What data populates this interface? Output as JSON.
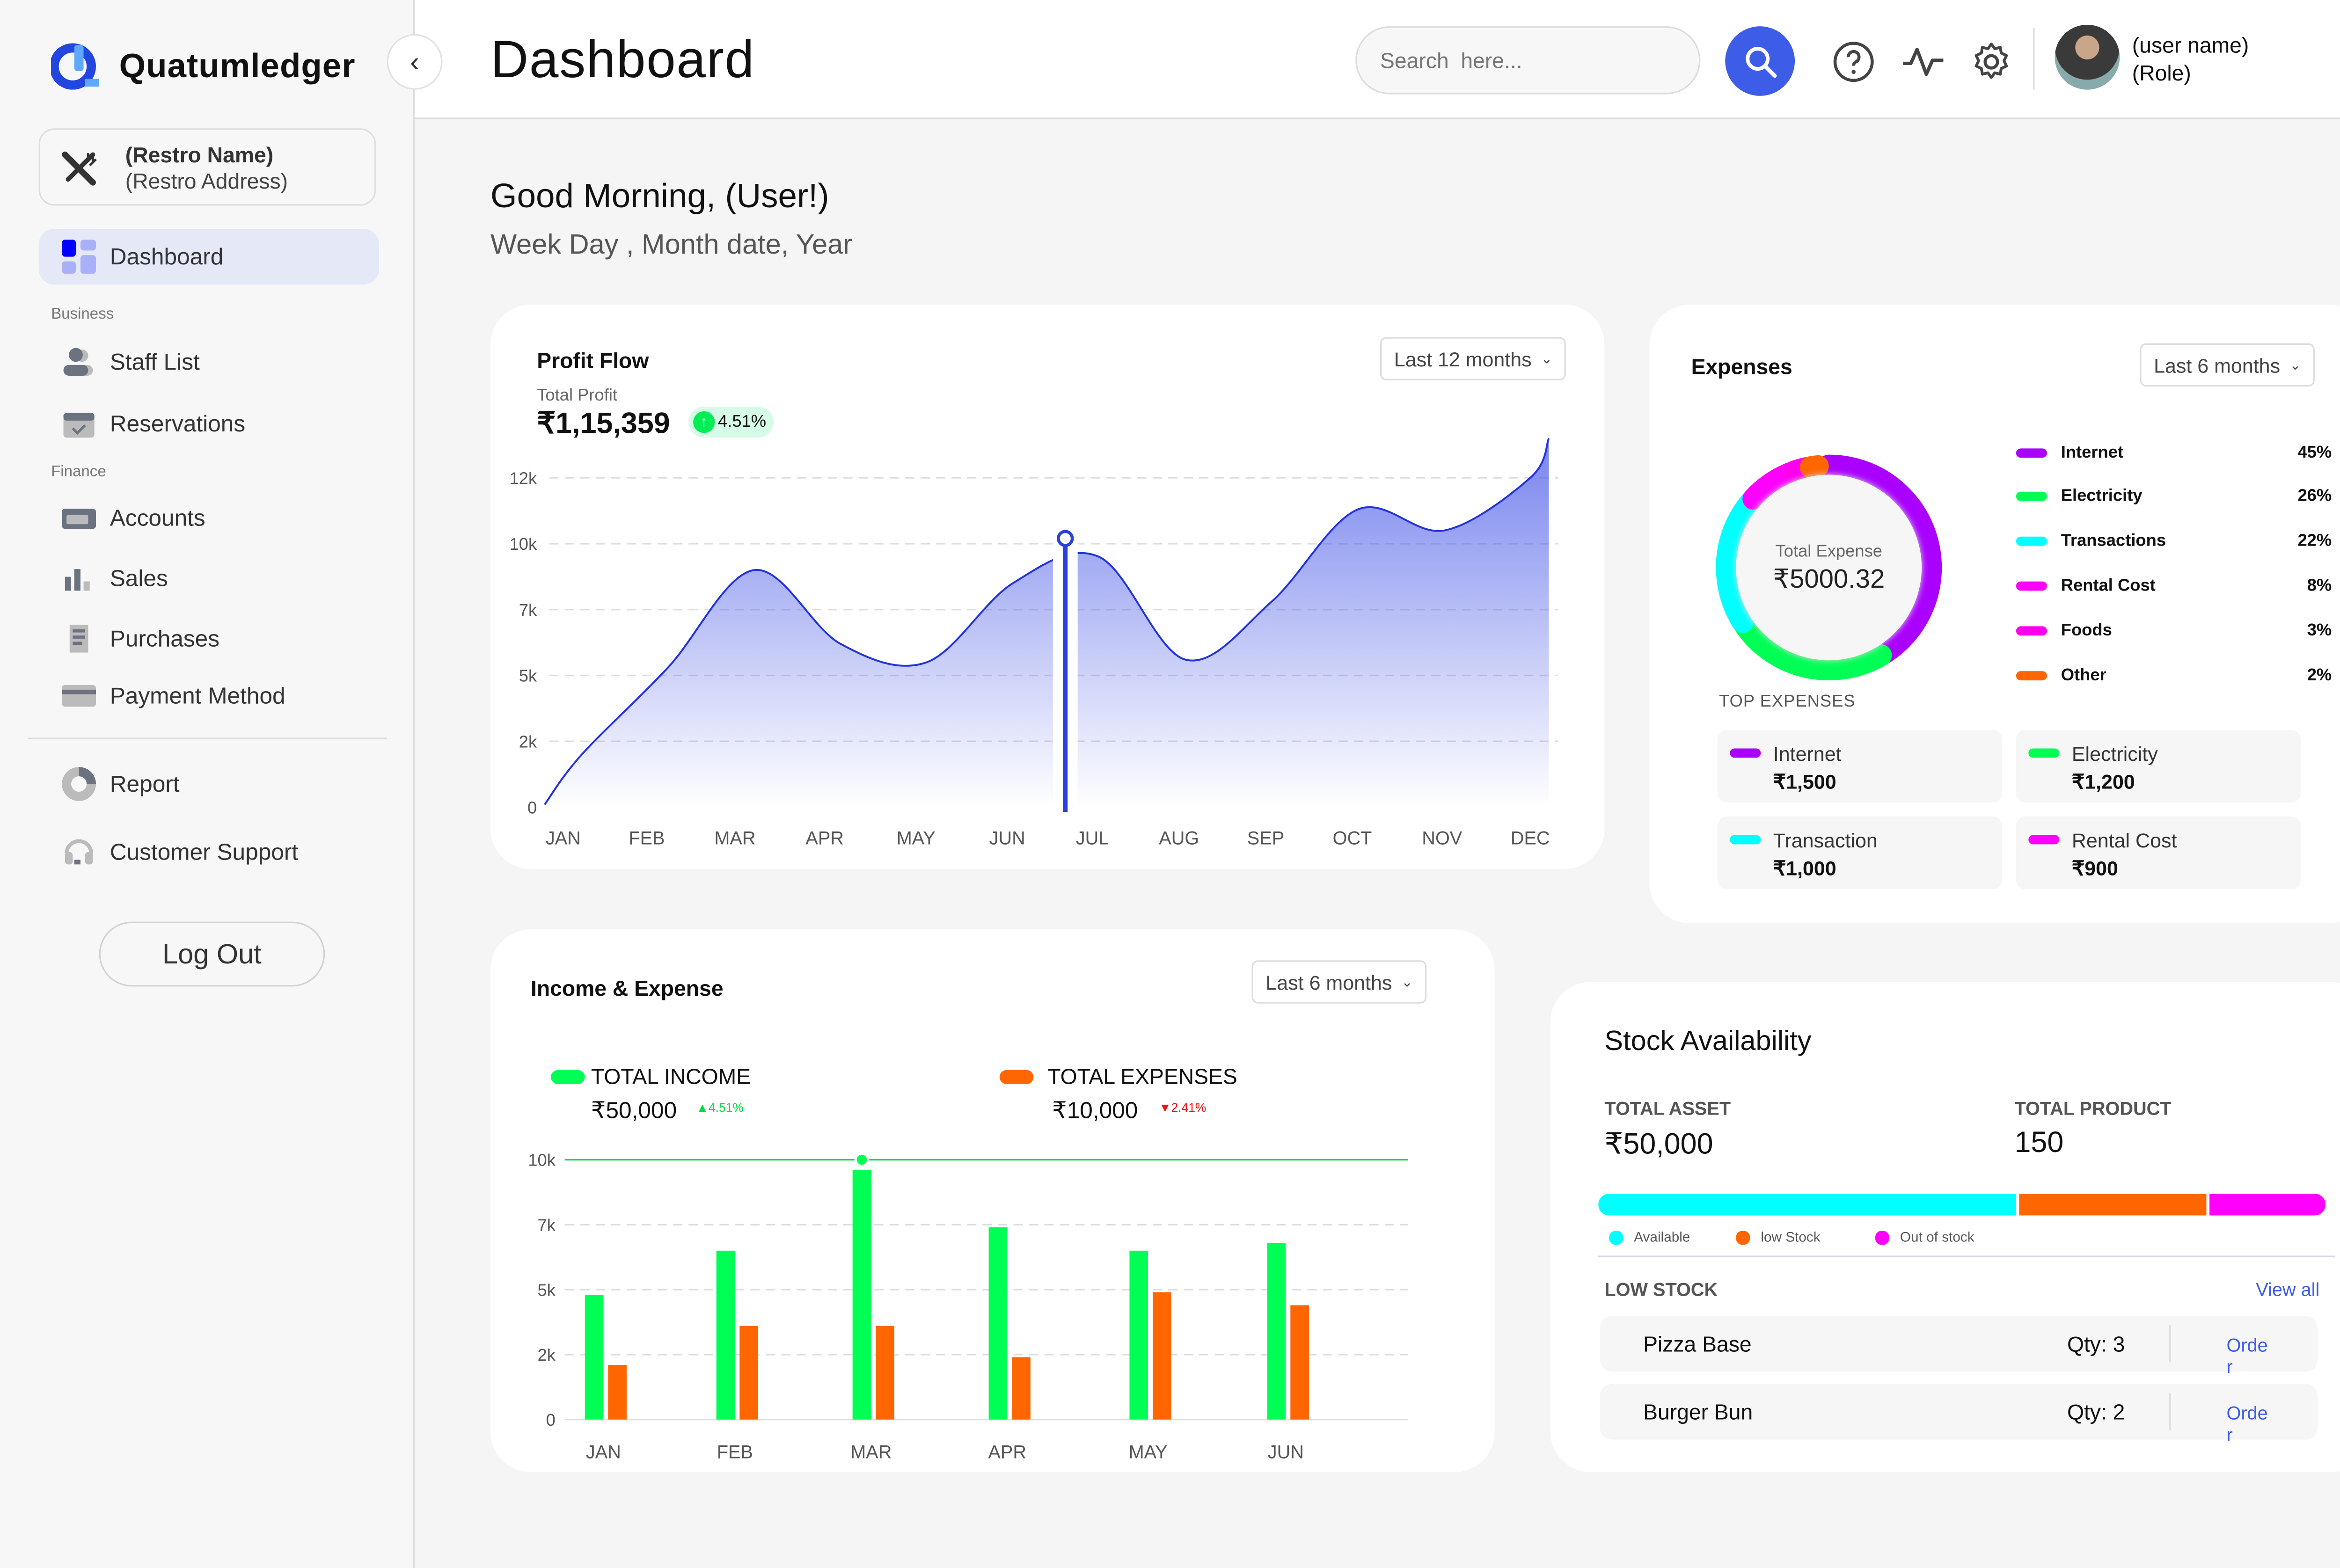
{
  "app": {
    "brand": "Quatumledger"
  },
  "restaurant": {
    "name": "(Restro Name)",
    "address": "(Restro Address)"
  },
  "sidebar": {
    "items": [
      {
        "label": "Dashboard",
        "icon": "dashboard-grid-icon",
        "active": true
      },
      {
        "section": "Business"
      },
      {
        "label": "Staff List",
        "icon": "users-icon"
      },
      {
        "label": "Reservations",
        "icon": "calendar-check-icon"
      },
      {
        "section": "Finance"
      },
      {
        "label": "Accounts",
        "icon": "wallet-icon"
      },
      {
        "label": "Sales",
        "icon": "bar-chart-icon"
      },
      {
        "label": "Purchases",
        "icon": "receipt-icon"
      },
      {
        "label": "Payment Method",
        "icon": "credit-card-icon"
      },
      {
        "label": "Report",
        "icon": "pie-chart-icon"
      },
      {
        "label": "Customer Support",
        "icon": "headset-icon"
      }
    ],
    "logout": "Log Out"
  },
  "header": {
    "title": "Dashboard",
    "search_placeholder": "Search  here...",
    "user_name": "(user name)",
    "user_role": "(Role)"
  },
  "greeting": {
    "title": "Good Morning, (User!)",
    "date": "Week Day , Month date, Year"
  },
  "colors": {
    "accent": "#3d5ce8",
    "internet": "#aa00ff",
    "electricity": "#00ff55",
    "transactions": "#00ffff",
    "rental": "#ff00ff",
    "foods": "#ff00ee",
    "other": "#ff6600",
    "income": "#00ff55",
    "expense": "#ff6600"
  },
  "profit_flow": {
    "title": "Profit Flow",
    "range": "Last 12 months",
    "total_label": "Total Profit",
    "total": "₹1,15,359",
    "change": "4.51%"
  },
  "expenses": {
    "title": "Expenses",
    "range": "Last 6 months",
    "center_label": "Total Expense",
    "center_value": "₹5000.32",
    "top_label": "TOP EXPENSES",
    "top": [
      {
        "label": "Internet",
        "value": "₹1,500",
        "color": "#aa00ff"
      },
      {
        "label": "Electricity",
        "value": "₹1,200",
        "color": "#00ff55"
      },
      {
        "label": "Transaction",
        "value": "₹1,000",
        "color": "#00ffff"
      },
      {
        "label": "Rental Cost",
        "value": "₹900",
        "color": "#ff00ff"
      }
    ]
  },
  "income_expense": {
    "title": "Income & Expense",
    "range": "Last 6 months",
    "income_label": "TOTAL INCOME",
    "income": "₹50,000",
    "income_change": "4.51%",
    "expense_label": "TOTAL EXPENSES",
    "expense": "₹10,000",
    "expense_change": "2.41%"
  },
  "stock": {
    "title": "Stock Availability",
    "asset_label": "TOTAL ASSET",
    "asset": "₹50,000",
    "product_label": "TOTAL PRODUCT",
    "product": "150",
    "segments": [
      {
        "label": "Available",
        "percent": 58,
        "color": "#00ffff"
      },
      {
        "label": "low Stock",
        "percent": 26,
        "color": "#ff6600"
      },
      {
        "label": "Out of stock",
        "percent": 16,
        "color": "#ff00ff"
      }
    ],
    "low_label": "LOW STOCK",
    "view_all": "View all",
    "low_items": [
      {
        "name": "Pizza Base",
        "qty": "Qty: 3",
        "action": "Order"
      },
      {
        "name": "Burger Bun",
        "qty": "Qty: 2",
        "action": "Order"
      }
    ]
  },
  "chart_data": [
    {
      "type": "area",
      "title": "Profit Flow",
      "categories": [
        "JAN",
        "FEB",
        "MAR",
        "APR",
        "MAY",
        "JUN",
        "JUL",
        "AUG",
        "SEP",
        "OCT",
        "NOV",
        "DEC"
      ],
      "values": [
        2,
        5.3,
        9,
        6.2,
        5.5,
        8.5,
        9.5,
        5.6,
        7.8,
        11.3,
        10.5,
        12.5
      ],
      "unit": "k",
      "yticks": [
        "0",
        "2k",
        "5k",
        "7k",
        "10k",
        "12k"
      ],
      "ylim": [
        0,
        12.5
      ],
      "highlight": "JUN",
      "grid": true,
      "color": "#3d4ee8"
    },
    {
      "type": "donut",
      "categories": [
        "Internet",
        "Electricity",
        "Transactions",
        "Rental Cost",
        "Foods",
        "Other"
      ],
      "values": [
        45,
        26,
        22,
        8,
        3,
        2
      ],
      "labels": [
        "45%",
        "26%",
        "22%",
        "8%",
        "3%",
        "2%"
      ],
      "colors": [
        "#aa00ff",
        "#00ff55",
        "#00ffff",
        "#ff00ff",
        "#ff00ee",
        "#ff6600"
      ],
      "legend": "right"
    },
    {
      "type": "bar",
      "categories": [
        "JAN",
        "FEB",
        "MAR",
        "APR",
        "MAY",
        "JUN"
      ],
      "series": [
        {
          "name": "TOTAL INCOME",
          "values": [
            4.8,
            6.5,
            9.6,
            7.4,
            6.5,
            6.8
          ],
          "color": "#00ff55"
        },
        {
          "name": "TOTAL EXPENSES",
          "values": [
            2.1,
            3.6,
            3.6,
            2.4,
            4.9,
            4.4
          ],
          "color": "#ff6600"
        }
      ],
      "unit": "k",
      "yticks": [
        "0",
        "2k",
        "5k",
        "7k",
        "10k"
      ],
      "ylim": [
        0,
        10
      ],
      "highlight": "MAR",
      "grid": true
    }
  ]
}
